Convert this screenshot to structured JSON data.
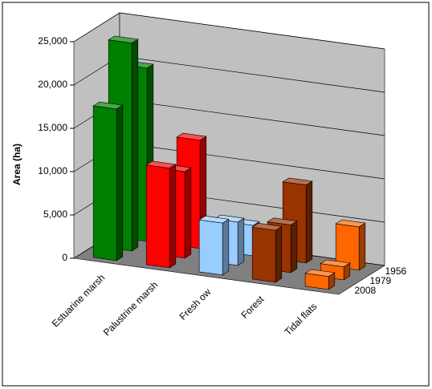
{
  "chart_data": {
    "type": "bar3d",
    "y_label": "Area (ha)",
    "categories": [
      "Estuarine marsh",
      "Palustrine marsh",
      "Fresh ow",
      "Forest",
      "Tidal flats"
    ],
    "category_colors": [
      "#008000",
      "#ff0000",
      "#99ccff",
      "#993300",
      "#ff6600"
    ],
    "series": [
      {
        "name": "2008",
        "values": [
          17500,
          11500,
          6000,
          6000,
          1500
        ]
      },
      {
        "name": "1979",
        "values": [
          24000,
          10000,
          5000,
          5500,
          1500
        ]
      },
      {
        "name": "1956",
        "values": [
          20000,
          12500,
          3500,
          9000,
          5000
        ]
      }
    ],
    "ylim": [
      0,
      25000
    ],
    "yticks": [
      {
        "value": 0,
        "label": "0"
      },
      {
        "value": 5000,
        "label": "5,000"
      },
      {
        "value": 10000,
        "label": "10,000"
      },
      {
        "value": 15000,
        "label": "15,000"
      },
      {
        "value": 20000,
        "label": "20,000"
      },
      {
        "value": 25000,
        "label": "25,000"
      }
    ],
    "grid": true
  }
}
